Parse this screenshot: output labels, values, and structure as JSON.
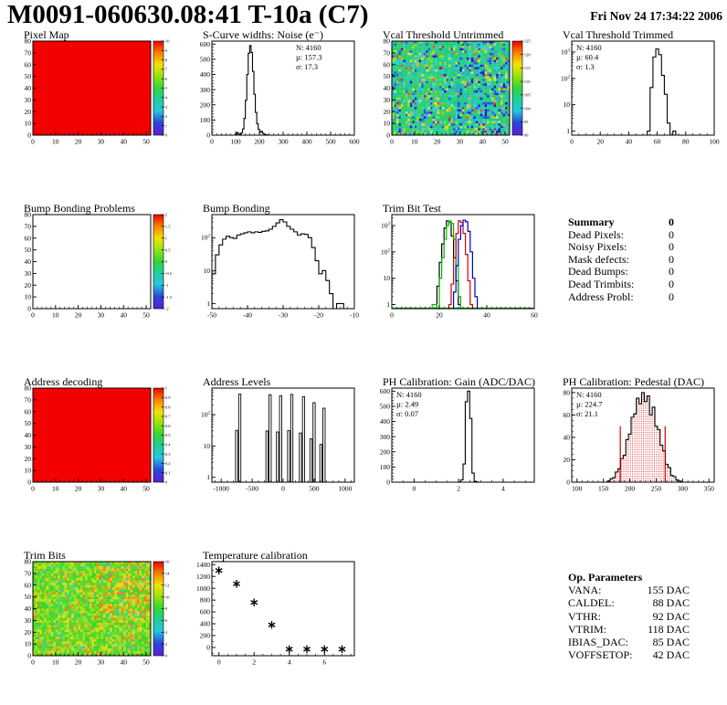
{
  "header": {
    "title": "M0091-060630.08:41 T-10a (C7)",
    "date": "Fri Nov 24 17:34:22 2006"
  },
  "summary": {
    "title": "Summary",
    "title_value": "0",
    "rows": [
      {
        "label": "Dead Pixels:",
        "value": "0"
      },
      {
        "label": "Noisy Pixels:",
        "value": "0"
      },
      {
        "label": "Mask defects:",
        "value": "0"
      },
      {
        "label": "Dead Bumps:",
        "value": "0"
      },
      {
        "label": "Dead Trimbits:",
        "value": "0"
      },
      {
        "label": "Address Probl:",
        "value": "0"
      }
    ]
  },
  "op_params": {
    "title": "Op. Parameters",
    "rows": [
      {
        "label": "VANA:",
        "value": "155 DAC"
      },
      {
        "label": "CALDEL:",
        "value": "88 DAC"
      },
      {
        "label": "VTHR:",
        "value": "92 DAC"
      },
      {
        "label": "VTRIM:",
        "value": "118 DAC"
      },
      {
        "label": "IBIAS_DAC:",
        "value": "85 DAC"
      },
      {
        "label": "VOFFSETOP:",
        "value": "42 DAC"
      }
    ]
  },
  "chart_data": [
    {
      "name": "pixel-map",
      "title": "Pixel Map",
      "type": "heatmap",
      "fill": "#f40000",
      "x": {
        "min": 0,
        "max": 52,
        "ticks": [
          0,
          10,
          20,
          30,
          40,
          50
        ],
        "minor": 5
      },
      "y": {
        "min": 0,
        "max": 80,
        "ticks": [
          0,
          10,
          20,
          30,
          40,
          50,
          60,
          70,
          80
        ]
      },
      "cbar": {
        "max": 10,
        "min": 0,
        "step": 1
      }
    },
    {
      "name": "scurve-noise",
      "title": "S-Curve widths: Noise (e⁻)",
      "type": "hist",
      "bin_start": 99,
      "bin_width": 6,
      "values": [
        6,
        18,
        8,
        4,
        15,
        40,
        110,
        230,
        400,
        540,
        590,
        545,
        420,
        270,
        150,
        75,
        38,
        18,
        25,
        12,
        6,
        3,
        1
      ],
      "x": {
        "min": 0,
        "max": 600,
        "ticks": [
          0,
          100,
          200,
          300,
          400,
          500,
          600
        ],
        "minor": 5
      },
      "y": {
        "min": 0,
        "max": 620,
        "ticks": [
          0,
          100,
          200,
          300,
          400,
          500,
          600
        ],
        "minor": 5
      },
      "stats": {
        "pos": "tr",
        "lines": [
          {
            "t": "N: 4160"
          },
          {
            "t": "µ: 157.3"
          },
          {
            "t": "σ: 17.3"
          }
        ]
      }
    },
    {
      "name": "vcal-threshold-untrimmed",
      "title": "Vcal Threshold Untrimmed",
      "type": "heatmap_noise",
      "seed": 421,
      "palette": [
        [
          "#2fd04c",
          0.22
        ],
        [
          "#27cf79",
          0.2
        ],
        [
          "#14c9a6",
          0.17
        ],
        [
          "#2bcfd0",
          0.13
        ],
        [
          "#2aa3e6",
          0.06
        ],
        [
          "#2b50e0",
          0.05
        ],
        [
          "#98dc28",
          0.06
        ],
        [
          "#e3e02a",
          0.04
        ],
        [
          "#f2a61c",
          0.03
        ],
        [
          "#ef4b15",
          0.015
        ],
        [
          "#1d18cf",
          0.025
        ]
      ],
      "bias": {
        "x0": 0.55,
        "x1": 1,
        "y0": 0,
        "y1": 1,
        "p": 0.22,
        "colors": [
          "#2b50e0",
          "#2aa3e6",
          "#1d18cf",
          "#14c9a6"
        ]
      },
      "x": {
        "min": 0,
        "max": 52,
        "ticks": [
          0,
          10,
          20,
          30,
          40,
          50
        ],
        "minor": 5
      },
      "y": {
        "min": 0,
        "max": 80,
        "ticks": [
          0,
          10,
          20,
          30,
          40,
          50,
          60,
          70,
          80
        ]
      },
      "cbar": {
        "max": 125,
        "min": 90,
        "step": 5
      }
    },
    {
      "name": "vcal-threshold-trimmed",
      "title": "Vcal Threshold Trimmed",
      "type": "hist",
      "bin_start": 53,
      "bin_width": 2,
      "values": [
        1,
        45,
        650,
        1300,
        800,
        130,
        25,
        2,
        0,
        1
      ],
      "x": {
        "min": 0,
        "max": 100,
        "ticks": [
          0,
          20,
          40,
          60,
          80,
          100
        ],
        "minor": 4
      },
      "y": {
        "log": true,
        "min": 0.7,
        "max": 2600,
        "decades": [
          1,
          10,
          100,
          1000
        ]
      },
      "stats": {
        "pos": "tl",
        "lines": [
          {
            "t": "N: 4160"
          },
          {
            "t": "µ: 60.4"
          },
          {
            "t": "σ:  1.3"
          }
        ]
      }
    },
    {
      "name": "bump-bonding-problems",
      "title": "Bump Bonding Problems",
      "type": "heatmap",
      "fill": "#ffffff",
      "x": {
        "min": 0,
        "max": 52,
        "ticks": [
          0,
          10,
          20,
          30,
          40,
          50
        ],
        "minor": 5
      },
      "y": {
        "min": 0,
        "max": 80,
        "ticks": [
          0,
          10,
          20,
          30,
          40,
          50,
          60,
          70,
          80
        ]
      },
      "cbar": {
        "max": 2,
        "min": -2,
        "step": 0.5
      }
    },
    {
      "name": "bump-bonding",
      "title": "Bump Bonding",
      "type": "hist",
      "bin_start": -50,
      "bin_width": 1,
      "values": [
        8,
        30,
        60,
        90,
        110,
        100,
        95,
        120,
        130,
        140,
        150,
        140,
        150,
        145,
        155,
        160,
        180,
        220,
        280,
        350,
        300,
        220,
        180,
        150,
        120,
        130,
        125,
        100,
        50,
        20,
        8,
        10,
        5,
        2,
        0,
        1,
        1,
        0,
        0,
        0
      ],
      "x": {
        "min": -50,
        "max": -10,
        "ticks": [
          -50,
          -40,
          -30,
          -20,
          -10
        ],
        "minor": 5
      },
      "y": {
        "log": true,
        "min": 0.7,
        "max": 500,
        "decades": [
          1,
          10,
          100
        ]
      }
    },
    {
      "name": "trim-bit-test",
      "title": "Trim Bit Test",
      "type": "hist_multi",
      "bin_width": 1,
      "series": [
        {
          "color": "#000000",
          "bin_start": 19,
          "values": [
            5,
            40,
            200,
            800,
            1500,
            1300,
            400,
            60,
            8,
            1
          ]
        },
        {
          "color": "#00b400",
          "bin_start": 17,
          "values": [
            1,
            1,
            0,
            10,
            60,
            300,
            1000,
            1500,
            1200,
            300,
            30,
            2
          ],
          "baseline": true
        },
        {
          "color": "#d40000",
          "bin_start": 24,
          "values": [
            1,
            6,
            60,
            500,
            1500,
            1300,
            500,
            80,
            8,
            1
          ]
        },
        {
          "color": "#0000cc",
          "bin_start": 26,
          "values": [
            3,
            30,
            300,
            1000,
            1600,
            1400,
            600,
            100,
            10,
            2
          ]
        }
      ],
      "x": {
        "min": 0,
        "max": 60,
        "ticks": [
          0,
          20,
          40,
          60
        ],
        "minor": 10
      },
      "y": {
        "log": true,
        "min": 0.7,
        "max": 2600,
        "decades": [
          1,
          10,
          100,
          1000
        ]
      }
    },
    {
      "name": "address-decoding",
      "title": "Address decoding",
      "type": "heatmap",
      "fill": "#f40000",
      "x": {
        "min": 0,
        "max": 52,
        "ticks": [
          0,
          10,
          20,
          30,
          40,
          50
        ],
        "minor": 5
      },
      "y": {
        "min": 0,
        "max": 80,
        "ticks": [
          0,
          10,
          20,
          30,
          40,
          50,
          60,
          70,
          80
        ]
      },
      "cbar": {
        "max": 1,
        "min": 0,
        "step": 0.1
      }
    },
    {
      "name": "address-levels",
      "title": "Address Levels",
      "type": "spikes",
      "spikes": [
        [
          -700,
          450
        ],
        [
          -210,
          430
        ],
        [
          -40,
          400
        ],
        [
          140,
          440
        ],
        [
          330,
          370
        ],
        [
          500,
          240
        ],
        [
          660,
          160
        ]
      ],
      "x": {
        "min": -1150,
        "max": 1150,
        "ticks": [
          -1000,
          -500,
          0,
          500,
          1000
        ],
        "minor": 5
      },
      "y": {
        "log": true,
        "min": 0.7,
        "max": 700,
        "decades": [
          1,
          10,
          100
        ]
      }
    },
    {
      "name": "ph-calibration-gain",
      "title": "PH Calibration: Gain (ADC/DAC)",
      "type": "hist",
      "bin_start": 2.0,
      "bin_width": 0.1,
      "values": [
        2,
        15,
        120,
        530,
        600,
        420,
        60,
        6,
        1
      ],
      "x": {
        "min": -1,
        "max": 5.4,
        "ticks": [
          0,
          2,
          4
        ],
        "minor": 4
      },
      "y": {
        "min": 0,
        "max": 620,
        "ticks": [
          0,
          100,
          200,
          300,
          400,
          500,
          600
        ],
        "minor": 5
      },
      "stats": {
        "pos": "tl",
        "lines": [
          {
            "t": "N: 4160"
          },
          {
            "t": "µ: 2.49"
          },
          {
            "t": "σ: 0.07"
          }
        ]
      }
    },
    {
      "name": "ph-calibration-pedestal",
      "title": "PH Calibration: Pedestal (DAC)",
      "type": "hist",
      "fill_pattern": "red_dots",
      "bin_start": 157.5,
      "bin_width": 5,
      "values": [
        1,
        3,
        4,
        9,
        12,
        21,
        24,
        38,
        43,
        58,
        61,
        75,
        70,
        80,
        72,
        77,
        60,
        67,
        50,
        47,
        33,
        28,
        16,
        13,
        6,
        5,
        2,
        1
      ],
      "vlines": [
        [
          182,
          50
        ],
        [
          267,
          50
        ]
      ],
      "x": {
        "min": 90,
        "max": 360,
        "ticks": [
          100,
          150,
          200,
          250,
          300,
          350
        ],
        "minor": 5
      },
      "y": {
        "min": 0,
        "max": 84,
        "ticks": [
          0,
          20,
          40,
          60,
          80
        ],
        "minor": 4
      },
      "stats": {
        "pos": "tl",
        "lines": [
          {
            "t": "N: 4160",
            "c": "#000000"
          },
          {
            "t": "µ: 224.7",
            "c": "#cc0000"
          },
          {
            "t": "σ: 21.1",
            "c": "#cc0000"
          }
        ]
      }
    },
    {
      "name": "trim-bits",
      "title": "Trim Bits",
      "type": "heatmap_noise",
      "seed": 99,
      "palette": [
        [
          "#3fd426",
          0.3
        ],
        [
          "#60d922",
          0.22
        ],
        [
          "#8cdf1e",
          0.18
        ],
        [
          "#b8e31a",
          0.12
        ],
        [
          "#e4d816",
          0.07
        ],
        [
          "#f2a918",
          0.05
        ],
        [
          "#ef7f14",
          0.02
        ],
        [
          "#2bcfb2",
          0.04
        ]
      ],
      "bias": {
        "x0": 0.5,
        "x1": 1,
        "y0": 0,
        "y1": 0.6,
        "p": 0.3,
        "colors": [
          "#f2a918",
          "#ef7f14",
          "#e4d816"
        ]
      },
      "x": {
        "min": 0,
        "max": 52,
        "ticks": [
          0,
          10,
          20,
          30,
          40,
          50
        ],
        "minor": 5
      },
      "y": {
        "min": 0,
        "max": 80,
        "ticks": [
          0,
          10,
          20,
          30,
          40,
          50,
          60,
          70,
          80
        ]
      },
      "cbar": {
        "max": 16,
        "min": 0,
        "step": 2
      }
    },
    {
      "name": "temperature-calibration",
      "title": "Temperature calibration",
      "type": "scatter",
      "points": [
        [
          0,
          1300
        ],
        [
          1,
          1075
        ],
        [
          2,
          760
        ],
        [
          3,
          380
        ],
        [
          4,
          -30
        ],
        [
          5,
          -30
        ],
        [
          6,
          -30
        ],
        [
          7,
          -30
        ]
      ],
      "x": {
        "min": -0.4,
        "max": 7.7,
        "ticks": [
          0,
          2,
          4,
          6
        ],
        "minor": 4
      },
      "y": {
        "min": -140,
        "max": 1450,
        "ticks": [
          0,
          200,
          400,
          600,
          800,
          1000,
          1200,
          1400
        ],
        "minor": 2
      }
    }
  ]
}
